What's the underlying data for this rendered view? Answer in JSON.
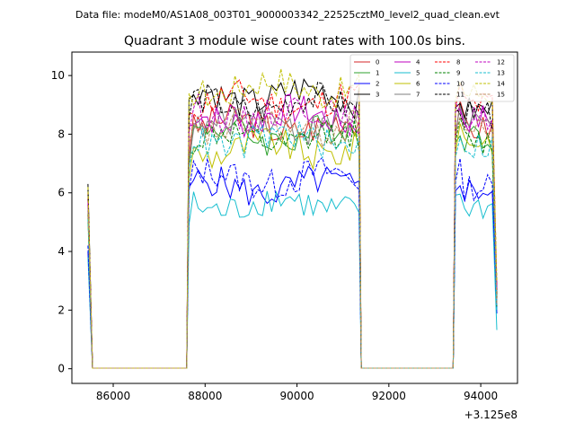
{
  "suptitle": "Data file: modeM0/AS1A08_003T01_9000003342_22525cztM0_level2_quad_clean.evt",
  "chart_data": {
    "type": "line",
    "title": "Quadrant 3 module wise count rates with 100.0s bins.",
    "xlabel": "",
    "ylabel": "",
    "x_offset_label": "+3.125e8",
    "xlim": [
      85100,
      94800
    ],
    "ylim": [
      -0.5,
      10.8
    ],
    "xticks": [
      86000,
      88000,
      90000,
      92000,
      94000
    ],
    "xtick_labels": [
      "86000",
      "88000",
      "90000",
      "92000",
      "94000"
    ],
    "yticks": [
      0,
      2,
      4,
      6,
      8,
      10
    ],
    "ytick_labels": [
      "0",
      "2",
      "4",
      "6",
      "8",
      "10"
    ],
    "grid": false,
    "legend_position": "top-right",
    "bin_width_s": 100,
    "segments": [
      {
        "start": 85450,
        "end": 85550,
        "gap_end": 87650
      },
      {
        "start": 87650,
        "end": 91350,
        "gap_end": 93450
      },
      {
        "start": 93450,
        "end": 94350
      }
    ],
    "series": [
      {
        "name": "0",
        "color": "#d62728",
        "dash": "solid",
        "edge": 5.8,
        "level": 8.3,
        "level2": 8.2
      },
      {
        "name": "1",
        "color": "#2ca02c",
        "dash": "solid",
        "edge": 5.4,
        "level": 8.0,
        "level2": 7.9
      },
      {
        "name": "2",
        "color": "#0000ff",
        "dash": "solid",
        "edge": 4.0,
        "level": 6.2,
        "level2": 6.1
      },
      {
        "name": "3",
        "color": "#000000",
        "dash": "solid",
        "edge": 6.3,
        "level": 9.3,
        "level2": 8.8
      },
      {
        "name": "4",
        "color": "#bf00bf",
        "dash": "solid",
        "edge": 5.6,
        "level": 8.6,
        "level2": 8.5
      },
      {
        "name": "5",
        "color": "#17becf",
        "dash": "solid",
        "edge": 3.8,
        "level": 5.6,
        "level2": 5.5
      },
      {
        "name": "6",
        "color": "#bfbf00",
        "dash": "solid",
        "edge": 5.2,
        "level": 7.5,
        "level2": 7.8
      },
      {
        "name": "7",
        "color": "#7f7f7f",
        "dash": "solid",
        "edge": 5.5,
        "level": 8.4,
        "level2": 8.3
      },
      {
        "name": "8",
        "color": "#ff0000",
        "dash": "dashed",
        "edge": 6.0,
        "level": 9.1,
        "level2": 9.0
      },
      {
        "name": "9",
        "color": "#008000",
        "dash": "dashed",
        "edge": 5.3,
        "level": 7.8,
        "level2": 7.7
      },
      {
        "name": "10",
        "color": "#0000ff",
        "dash": "dashed",
        "edge": 4.2,
        "level": 6.5,
        "level2": 6.2
      },
      {
        "name": "11",
        "color": "#000000",
        "dash": "dashed",
        "edge": 6.1,
        "level": 9.0,
        "level2": 8.6
      },
      {
        "name": "12",
        "color": "#bf00bf",
        "dash": "dashed",
        "edge": 5.7,
        "level": 8.7,
        "level2": 8.6
      },
      {
        "name": "13",
        "color": "#17becf",
        "dash": "dashed",
        "edge": 5.1,
        "level": 7.8,
        "level2": 7.6
      },
      {
        "name": "14",
        "color": "#bfbf00",
        "dash": "dashed",
        "edge": 6.2,
        "level": 9.6,
        "level2": 9.4
      },
      {
        "name": "15",
        "color": "#bc8f5f",
        "dash": "dashed",
        "edge": 5.5,
        "level": 8.2,
        "level2": 8.1
      }
    ]
  }
}
